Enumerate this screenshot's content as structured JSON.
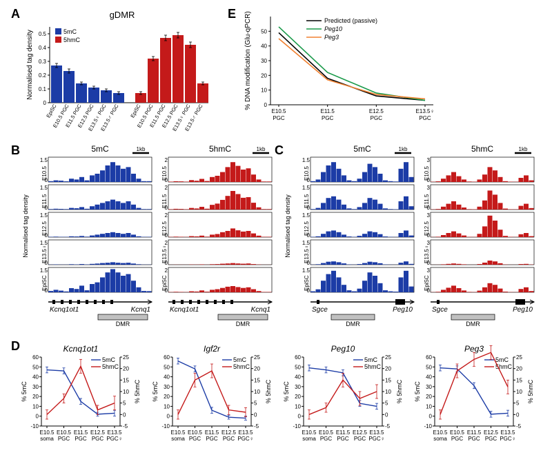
{
  "labels": {
    "A": "A",
    "B": "B",
    "C": "C",
    "D": "D",
    "E": "E"
  },
  "colors": {
    "mc": "#1c3ca6",
    "hmc": "#c41a1a",
    "black": "#000000",
    "peg10": "#1a9a4a",
    "peg3": "#f08030",
    "white": "#ffffff",
    "dmr": "#c0c0c0"
  },
  "A": {
    "title": "gDMR",
    "ylabel": "Normalised tag density",
    "legend": {
      "mc": "5mC",
      "hmc": "5hmC"
    },
    "categories": [
      "EpiSC",
      "E10.5 PGC",
      "E11.5 PGC",
      "E12.5 PGC",
      "E13.5♀ PGC",
      "E13.5♂ PGC"
    ],
    "mc": [
      0.27,
      0.23,
      0.14,
      0.11,
      0.09,
      0.07
    ],
    "hmc": [
      0.07,
      0.32,
      0.47,
      0.49,
      0.42,
      0.14
    ],
    "mc_err": [
      0.015,
      0.015,
      0.01,
      0.01,
      0.01,
      0.01
    ],
    "hmc_err": [
      0.01,
      0.015,
      0.02,
      0.02,
      0.02,
      0.01
    ],
    "ylim": [
      0,
      0.55
    ],
    "yticks": [
      0,
      0.1,
      0.2,
      0.3,
      0.4,
      0.5
    ]
  },
  "B": {
    "mc_title": "5mC",
    "hmc_title": "5hmC",
    "stages": [
      "E10.5",
      "E11.5",
      "E12.5",
      "E13.5♀",
      "EpiSC"
    ],
    "ymax_mc": 1.5,
    "ymax_hmc": 2.0,
    "gene_left": "Kcnq1ot1",
    "gene_right": "Kcnq1",
    "dmr": "DMR",
    "scale": "1kb",
    "ylabel": "Normalised tag density"
  },
  "C": {
    "mc_title": "5mC",
    "hmc_title": "5hmC",
    "stages": [
      "E10.5",
      "E11.5",
      "E12.5",
      "E13.5♀",
      "EpiSC"
    ],
    "ymax_mc": 1.5,
    "ymax_hmc": 3.0,
    "gene_left": "Sgce",
    "gene_right": "Peg10",
    "dmr": "DMR",
    "scale": "1kb",
    "ylabel": "Normalised tag density"
  },
  "D": {
    "x": [
      "E10.5\nsoma",
      "E10.5\nPGC",
      "E11.5\nPGC",
      "E12.5\nPGC",
      "E13.5\nPGC♀"
    ],
    "ylabel_l": "% 5mC",
    "ylabel_r": "% 5hmC",
    "ylim_l": [
      -10,
      60
    ],
    "yticks_l": [
      -10,
      0,
      10,
      20,
      30,
      40,
      50,
      60
    ],
    "ylim_r": [
      -5,
      25
    ],
    "yticks_r": [
      -5,
      0,
      5,
      10,
      15,
      20,
      25
    ],
    "legend": {
      "mc": "5mC",
      "hmc": "5hmC"
    },
    "panels": {
      "Kcnq1ot1": {
        "mc": [
          47,
          46,
          15,
          2,
          3
        ],
        "hmc": [
          0,
          7,
          21,
          2,
          5
        ],
        "mc_e": [
          3,
          3,
          3,
          2,
          3
        ],
        "hmc_e": [
          2,
          2,
          3,
          2,
          3
        ]
      },
      "Igf2r": {
        "mc": [
          56,
          48,
          6,
          -1,
          -2
        ],
        "hmc": [
          0,
          15,
          19,
          2,
          1
        ],
        "mc_e": [
          3,
          3,
          3,
          2,
          2
        ],
        "hmc_e": [
          2,
          3,
          3,
          2,
          2
        ]
      },
      "Peg10": {
        "mc": [
          49,
          47,
          44,
          13,
          10
        ],
        "hmc": [
          0,
          3,
          15,
          7,
          10
        ],
        "mc_e": [
          3,
          3,
          3,
          3,
          3
        ],
        "hmc_e": [
          2,
          2,
          3,
          3,
          3
        ]
      },
      "Peg3": {
        "mc": [
          49,
          48,
          31,
          2,
          3
        ],
        "hmc": [
          0,
          19,
          24,
          27,
          12
        ],
        "mc_e": [
          3,
          3,
          3,
          3,
          3
        ],
        "hmc_e": [
          2,
          3,
          3,
          3,
          3
        ]
      }
    }
  },
  "E": {
    "ylabel": "% DNA modification (Glu-qPCR)",
    "x": [
      "E10.5\nPGC",
      "E11.5\nPGC",
      "E12.5\nPGC",
      "E13.5♀\nPGC"
    ],
    "ylim": [
      0,
      60
    ],
    "yticks": [
      0,
      10,
      20,
      30,
      40,
      50
    ],
    "legend": {
      "pred": "Predicted (passive)",
      "peg10": "Peg10",
      "peg3": "Peg3"
    },
    "pred": [
      49,
      18,
      6,
      3
    ],
    "peg10": [
      53,
      22,
      8,
      3
    ],
    "peg3": [
      45,
      17,
      7,
      4
    ]
  },
  "noise": {
    "B_mc": [
      [
        0.05,
        0.1,
        0.08,
        0.04,
        0.2,
        0.15,
        0.3,
        0.1,
        0.4,
        0.5,
        0.7,
        1.0,
        1.2,
        1.0,
        0.8,
        0.9,
        0.5,
        0.2,
        0.05,
        0.05
      ],
      [
        0.03,
        0.05,
        0.04,
        0.03,
        0.1,
        0.08,
        0.15,
        0.05,
        0.2,
        0.3,
        0.4,
        0.5,
        0.6,
        0.5,
        0.4,
        0.5,
        0.3,
        0.1,
        0.03,
        0.03
      ],
      [
        0.02,
        0.03,
        0.02,
        0.02,
        0.05,
        0.04,
        0.07,
        0.03,
        0.1,
        0.15,
        0.2,
        0.25,
        0.3,
        0.25,
        0.2,
        0.25,
        0.15,
        0.05,
        0.02,
        0.02
      ],
      [
        0.01,
        0.02,
        0.01,
        0.01,
        0.03,
        0.02,
        0.04,
        0.02,
        0.05,
        0.07,
        0.1,
        0.12,
        0.15,
        0.12,
        0.1,
        0.12,
        0.07,
        0.03,
        0.01,
        0.01
      ],
      [
        0.08,
        0.15,
        0.1,
        0.05,
        0.25,
        0.2,
        0.4,
        0.12,
        0.5,
        0.6,
        0.9,
        1.2,
        1.4,
        1.2,
        1.0,
        1.1,
        0.7,
        0.3,
        0.08,
        0.07
      ]
    ],
    "B_hmc": [
      [
        0.03,
        0.06,
        0.05,
        0.03,
        0.15,
        0.1,
        0.25,
        0.08,
        0.4,
        0.5,
        0.8,
        1.2,
        1.6,
        1.3,
        1.0,
        1.1,
        0.6,
        0.2,
        0.04,
        0.04
      ],
      [
        0.03,
        0.06,
        0.05,
        0.03,
        0.13,
        0.09,
        0.22,
        0.07,
        0.38,
        0.48,
        0.78,
        1.1,
        1.5,
        1.25,
        0.95,
        1.0,
        0.55,
        0.18,
        0.04,
        0.04
      ],
      [
        0.02,
        0.04,
        0.03,
        0.02,
        0.08,
        0.06,
        0.12,
        0.04,
        0.2,
        0.25,
        0.4,
        0.5,
        0.7,
        0.55,
        0.45,
        0.5,
        0.3,
        0.12,
        0.03,
        0.03
      ],
      [
        0.005,
        0.01,
        0.008,
        0.006,
        0.02,
        0.015,
        0.03,
        0.01,
        0.04,
        0.05,
        0.08,
        0.1,
        0.13,
        0.1,
        0.08,
        0.1,
        0.05,
        0.02,
        0.006,
        0.006
      ],
      [
        0.02,
        0.04,
        0.03,
        0.02,
        0.08,
        0.06,
        0.15,
        0.05,
        0.2,
        0.25,
        0.35,
        0.45,
        0.5,
        0.42,
        0.35,
        0.4,
        0.25,
        0.1,
        0.03,
        0.03
      ]
    ],
    "C_mc": [
      [
        0.05,
        0.15,
        0.6,
        1.0,
        1.2,
        0.8,
        0.4,
        0.1,
        0.05,
        0.2,
        0.6,
        1.1,
        0.9,
        0.5,
        0.1,
        0.05,
        0.03,
        0.8,
        1.2,
        0.3
      ],
      [
        0.03,
        0.1,
        0.4,
        0.7,
        0.8,
        0.6,
        0.3,
        0.07,
        0.03,
        0.15,
        0.4,
        0.7,
        0.6,
        0.35,
        0.07,
        0.03,
        0.02,
        0.5,
        0.8,
        0.2
      ],
      [
        0.02,
        0.05,
        0.2,
        0.35,
        0.4,
        0.3,
        0.15,
        0.04,
        0.02,
        0.08,
        0.2,
        0.35,
        0.3,
        0.18,
        0.04,
        0.02,
        0.01,
        0.25,
        0.4,
        0.1
      ],
      [
        0.01,
        0.03,
        0.1,
        0.18,
        0.2,
        0.15,
        0.08,
        0.02,
        0.01,
        0.04,
        0.1,
        0.18,
        0.15,
        0.09,
        0.02,
        0.01,
        0.005,
        0.12,
        0.2,
        0.05
      ],
      [
        0.06,
        0.18,
        0.7,
        1.1,
        1.3,
        0.9,
        0.45,
        0.12,
        0.06,
        0.22,
        0.7,
        1.2,
        1.0,
        0.55,
        0.12,
        0.06,
        0.04,
        0.9,
        1.3,
        0.35
      ]
    ],
    "C_hmc": [
      [
        0.03,
        0.08,
        0.4,
        0.8,
        1.2,
        0.7,
        0.3,
        0.06,
        0.04,
        0.3,
        0.9,
        1.8,
        1.4,
        0.6,
        0.1,
        0.04,
        0.03,
        0.5,
        0.8,
        0.2
      ],
      [
        0.03,
        0.07,
        0.35,
        0.7,
        1.0,
        0.6,
        0.25,
        0.05,
        0.04,
        0.35,
        1.1,
        2.3,
        1.8,
        0.8,
        0.12,
        0.04,
        0.03,
        0.45,
        0.7,
        0.18
      ],
      [
        0.02,
        0.05,
        0.25,
        0.5,
        0.7,
        0.45,
        0.2,
        0.04,
        0.03,
        0.4,
        1.3,
        2.6,
        2.0,
        0.9,
        0.15,
        0.04,
        0.02,
        0.35,
        0.5,
        0.12
      ],
      [
        0.005,
        0.01,
        0.05,
        0.1,
        0.15,
        0.1,
        0.05,
        0.01,
        0.008,
        0.08,
        0.25,
        0.5,
        0.4,
        0.18,
        0.03,
        0.01,
        0.005,
        0.08,
        0.1,
        0.03
      ],
      [
        0.02,
        0.06,
        0.3,
        0.55,
        0.8,
        0.5,
        0.22,
        0.05,
        0.03,
        0.2,
        0.6,
        1.1,
        0.9,
        0.45,
        0.08,
        0.03,
        0.02,
        0.4,
        0.6,
        0.15
      ]
    ]
  }
}
